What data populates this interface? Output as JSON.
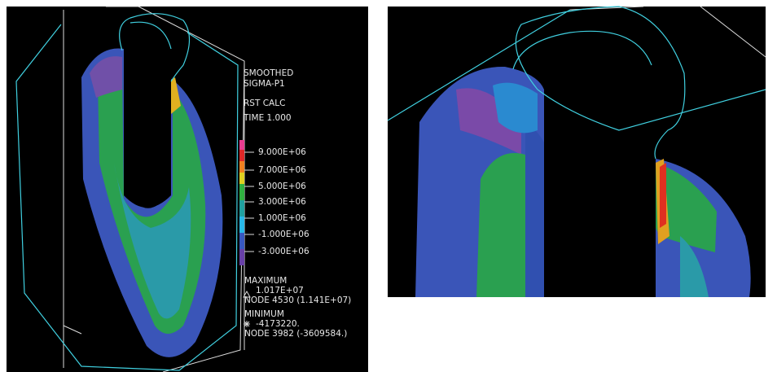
{
  "left_panel": {
    "header": [
      "SMOOTHED",
      "SIGMA-P1",
      "RST CALC",
      "TIME 1.000"
    ],
    "legend": [
      "9.000E+06",
      "7.000E+06",
      "5.000E+06",
      "3.000E+06",
      "1.000E+06",
      "-1.000E+06",
      "-3.000E+06"
    ],
    "maximum": {
      "title": "MAXIMUM",
      "value": "1.017E+07",
      "node": "NODE 4530 (1.141E+07)"
    },
    "minimum": {
      "title": "MINIMUM",
      "value": "-4173220.",
      "node": "NODE 3982 (-3609584.)"
    }
  }
}
